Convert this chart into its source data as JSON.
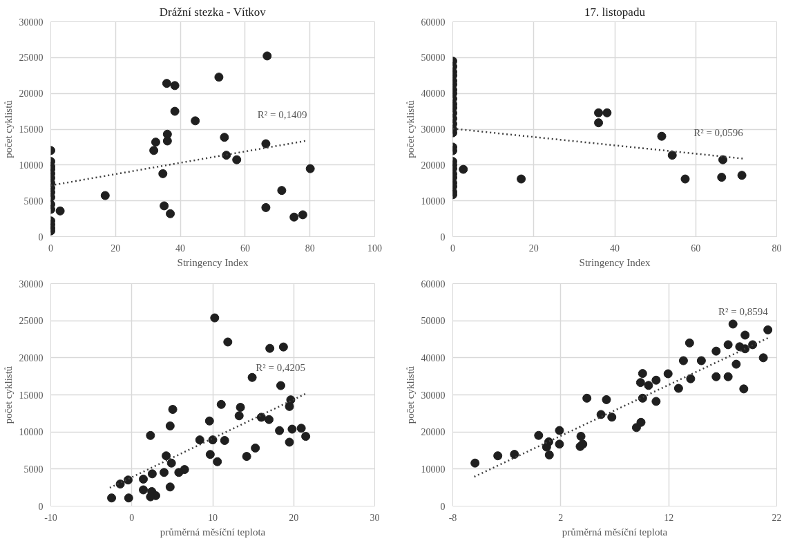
{
  "chart_data": [
    {
      "type": "scatter",
      "title": "Drážní stezka - Vítkov",
      "xlabel": "Stringency Index",
      "ylabel": "počet cyklistů",
      "xlim": [
        0,
        100
      ],
      "xticks": [
        0,
        20,
        40,
        60,
        80,
        100
      ],
      "ylim": [
        0,
        30000
      ],
      "yticks": [
        0,
        5000,
        10000,
        15000,
        20000,
        25000,
        30000
      ],
      "grid": true,
      "marker": "circle",
      "annotations": [
        "R² = 0,1409"
      ],
      "series": [
        {
          "color": "#1f1f1f",
          "x": [
            66.8,
            51.9,
            35.8,
            38.3,
            38.3,
            44.6,
            36.0,
            32.4,
            36.0,
            31.8,
            53.6,
            66.4,
            54.2,
            57.4,
            80.1,
            34.6,
            71.3,
            16.8,
            2.9,
            35.0,
            36.9,
            66.4,
            75.1,
            77.8,
            0,
            0,
            0,
            0,
            0,
            0,
            0,
            0,
            0,
            0,
            0,
            0,
            0,
            0,
            0,
            0
          ],
          "values": [
            25230,
            22270,
            21400,
            21090,
            17500,
            16170,
            14300,
            13200,
            13360,
            12030,
            13870,
            12970,
            11370,
            10740,
            9490,
            8790,
            6450,
            5740,
            3590,
            4300,
            3200,
            4060,
            2730,
            3050,
            12030,
            10500,
            9800,
            9400,
            8800,
            8200,
            7500,
            6800,
            6200,
            5500,
            4500,
            3800,
            2200,
            1700,
            1200,
            800
          ]
        },
        {
          "type": "line",
          "line_style": "dotted",
          "marker": "none",
          "color": "#404040",
          "x": [
            0,
            79.1
          ],
          "values": [
            7150,
            13400
          ]
        }
      ]
    },
    {
      "type": "scatter",
      "title": "17. listopadu",
      "xlabel": "Stringency Index",
      "ylabel": "počet cyklistů",
      "xlim": [
        0,
        80
      ],
      "xticks": [
        0,
        20,
        40,
        60,
        80
      ],
      "ylim": [
        0,
        60000
      ],
      "yticks": [
        0,
        10000,
        20000,
        30000,
        40000,
        50000,
        60000
      ],
      "grid": true,
      "marker": "circle",
      "annotations": [
        "R² = 0,0596"
      ],
      "series": [
        {
          "color": "#1f1f1f",
          "x": [
            36.0,
            38.1,
            36.0,
            51.6,
            54.2,
            66.7,
            57.4,
            66.4,
            71.4,
            16.9,
            2.6,
            0,
            0,
            0,
            0,
            0,
            0,
            0,
            0,
            0,
            0,
            0,
            0,
            0,
            0,
            0,
            0,
            0,
            0,
            0,
            0,
            0,
            0,
            0,
            0,
            0,
            0,
            0
          ],
          "values": [
            34580,
            34580,
            31800,
            28030,
            22740,
            21470,
            16100,
            16580,
            17130,
            16100,
            18790,
            49000,
            47500,
            46000,
            45000,
            43500,
            42500,
            41000,
            40000,
            38500,
            37000,
            36000,
            34500,
            33000,
            31500,
            30000,
            29000,
            25000,
            24000,
            21000,
            20000,
            19000,
            17500,
            16500,
            15000,
            14000,
            12500,
            11700
          ]
        },
        {
          "type": "line",
          "line_style": "dotted",
          "marker": "none",
          "color": "#404040",
          "x": [
            0,
            71.7
          ],
          "values": [
            30160,
            21790
          ]
        }
      ]
    },
    {
      "type": "scatter",
      "xlabel": "průměrná měsíční teplota",
      "ylabel": "počet cyklistů",
      "xlim": [
        -10,
        30
      ],
      "xticks": [
        -10,
        0,
        10,
        20,
        30
      ],
      "ylim": [
        0,
        30000
      ],
      "yticks": [
        0,
        5000,
        10000,
        15000,
        20000,
        25000,
        30000
      ],
      "grid": true,
      "marker": "circle",
      "annotations": [
        "R² = 0,4205"
      ],
      "series": [
        {
          "color": "#1f1f1f",
          "x": [
            10.24,
            11.86,
            17.05,
            18.73,
            14.87,
            18.4,
            19.63,
            19.47,
            11.05,
            13.42,
            13.26,
            5.06,
            4.74,
            9.6,
            16.0,
            16.95,
            18.24,
            19.8,
            20.93,
            21.48,
            19.47,
            15.26,
            14.19,
            2.31,
            8.4,
            10.0,
            11.47,
            9.69,
            10.57,
            4.25,
            4.9,
            6.52,
            5.81,
            3.99,
            2.53,
            1.43,
            -0.45,
            -1.42,
            4.74,
            1.43,
            2.47,
            2.96,
            2.31,
            -0.38,
            -2.49
          ],
          "values": [
            25380,
            22130,
            21270,
            21460,
            17350,
            16250,
            14330,
            13430,
            13710,
            13320,
            12180,
            13040,
            10810,
            11480,
            11980,
            11670,
            10180,
            10380,
            10500,
            9400,
            8620,
            7830,
            6700,
            9520,
            8930,
            8930,
            8850,
            6970,
            5990,
            6780,
            5800,
            4930,
            4540,
            4540,
            4350,
            3640,
            3520,
            2980,
            2580,
            2190,
            1960,
            1410,
            1250,
            1100,
            1100
          ]
        },
        {
          "type": "line",
          "line_style": "dotted",
          "marker": "none",
          "color": "#404040",
          "x": [
            -2.71,
            21.42
          ],
          "values": [
            2470,
            15120
          ]
        }
      ]
    },
    {
      "type": "scatter",
      "xlabel": "průměrná měsíční teplota",
      "ylabel": "počet cyklistů",
      "xlim": [
        -8,
        22
      ],
      "xticks": [
        -8,
        2,
        12,
        22
      ],
      "ylim": [
        0,
        60000
      ],
      "yticks": [
        0,
        10000,
        20000,
        30000,
        40000,
        50000,
        60000
      ],
      "grid": true,
      "marker": "circle",
      "annotations": [
        "R² = 0,8594"
      ],
      "series": [
        {
          "color": "#1f1f1f",
          "x": [
            -5.94,
            -3.83,
            -2.29,
            -0.05,
            0.89,
            0.94,
            0.69,
            1.88,
            1.88,
            3.87,
            3.8,
            4.04,
            4.42,
            6.23,
            5.73,
            6.73,
            9.01,
            9.43,
            9.58,
            10.83,
            9.58,
            9.39,
            10.13,
            10.83,
            11.94,
            12.91,
            13.36,
            14.03,
            13.93,
            15.02,
            16.39,
            16.39,
            17.5,
            17.5,
            17.95,
            18.25,
            18.57,
            19.07,
            19.07,
            19.77,
            18.95,
            20.76,
            21.18
          ],
          "values": [
            11610,
            13570,
            13960,
            19060,
            17330,
            13800,
            15920,
            16710,
            20390,
            18820,
            16080,
            16710,
            29100,
            28710,
            24710,
            24000,
            21180,
            22590,
            29100,
            28240,
            35760,
            33330,
            32550,
            33960,
            35690,
            31760,
            39220,
            34350,
            44000,
            39220,
            41800,
            34900,
            34900,
            43530,
            49100,
            38270,
            42980,
            46120,
            42430,
            43530,
            31610,
            40000,
            47530
          ]
        },
        {
          "type": "line",
          "line_style": "dotted",
          "marker": "none",
          "color": "#404040",
          "x": [
            -6.01,
            21.18
          ],
          "values": [
            7920,
            45330
          ]
        }
      ]
    }
  ]
}
